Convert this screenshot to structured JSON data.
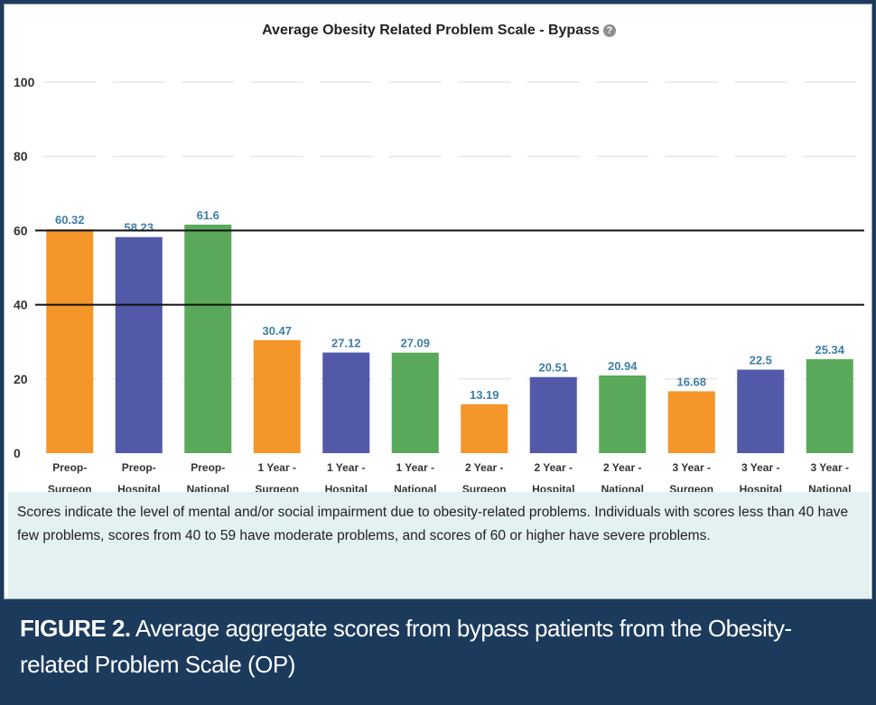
{
  "chart_data": {
    "type": "bar",
    "title": "Average Obesity Related Problem Scale - Bypass",
    "help_icon": "?",
    "categories": [
      [
        "Preop-",
        "Surgeon"
      ],
      [
        "Preop-",
        "Hospital"
      ],
      [
        "Preop-",
        "National"
      ],
      [
        "1 Year -",
        "Surgeon"
      ],
      [
        "1 Year -",
        "Hospital"
      ],
      [
        "1 Year -",
        "National"
      ],
      [
        "2 Year -",
        "Surgeon"
      ],
      [
        "2 Year -",
        "Hospital"
      ],
      [
        "2 Year -",
        "National"
      ],
      [
        "3 Year -",
        "Surgeon"
      ],
      [
        "3 Year -",
        "Hospital"
      ],
      [
        "3 Year -",
        "National"
      ]
    ],
    "values": [
      60.32,
      58.23,
      61.6,
      30.47,
      27.12,
      27.09,
      13.19,
      20.51,
      20.94,
      16.68,
      22.5,
      25.34
    ],
    "value_labels": [
      "60.32",
      "58.23",
      "61.6",
      "30.47",
      "27.12",
      "27.09",
      "13.19",
      "20.51",
      "20.94",
      "16.68",
      "22.5",
      "25.34"
    ],
    "bar_colors": [
      "#f4962a",
      "#5159a8",
      "#5aa95a",
      "#f4962a",
      "#5159a8",
      "#5aa95a",
      "#f4962a",
      "#5159a8",
      "#5aa95a",
      "#f4962a",
      "#5159a8",
      "#5aa95a"
    ],
    "yticks": [
      0,
      20,
      40,
      60,
      80,
      100
    ],
    "ylim": [
      0,
      100
    ],
    "reference_lines": [
      60,
      40
    ],
    "grid": true,
    "xlabel": "",
    "ylabel": ""
  },
  "caption_box": {
    "text": "Scores indicate the level of mental and/or social impairment due to obesity-related problems. Individuals with scores less than 40 have few problems, scores from 40 to 59 have moderate problems, and scores of 60 or higher have severe problems."
  },
  "figure_caption": {
    "lead": "FIGURE 2.",
    "text": " Average aggregate scores from bypass patients from the Obesity-related Problem Scale (OP)"
  },
  "colors": {
    "label_text": "#3f7ea6",
    "background": "#1b3a5c",
    "caption_box": "#e3f1f3"
  }
}
